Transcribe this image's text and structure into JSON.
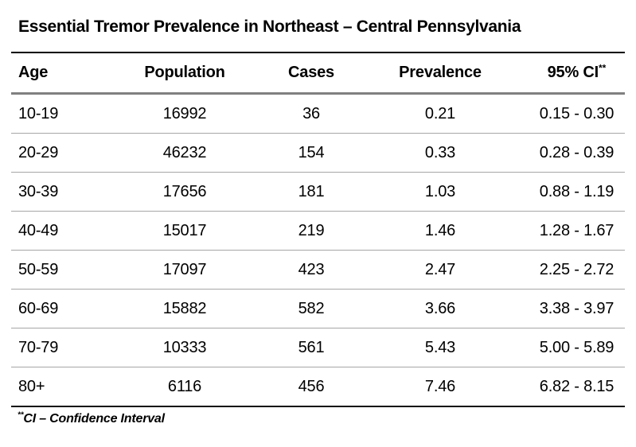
{
  "title": "Essential Tremor Prevalence in Northeast – Central Pennsylvania",
  "table": {
    "columns": [
      "Age",
      "Population",
      "Cases",
      "Prevalence",
      "95% CI"
    ],
    "ci_marker": "**",
    "rows": [
      [
        "10-19",
        "16992",
        "36",
        "0.21",
        "0.15 - 0.30"
      ],
      [
        "20-29",
        "46232",
        "154",
        "0.33",
        "0.28 - 0.39"
      ],
      [
        "30-39",
        "17656",
        "181",
        "1.03",
        "0.88 - 1.19"
      ],
      [
        "40-49",
        "15017",
        "219",
        "1.46",
        "1.28 - 1.67"
      ],
      [
        "50-59",
        "17097",
        "423",
        "2.47",
        "2.25 - 2.72"
      ],
      [
        "60-69",
        "15882",
        "582",
        "3.66",
        "3.38 - 3.97"
      ],
      [
        "70-79",
        "10333",
        "561",
        "5.43",
        "5.00 - 5.89"
      ],
      [
        "80+",
        "6116",
        "456",
        "7.46",
        "6.82 - 8.15"
      ]
    ]
  },
  "footnote": {
    "marker": "**",
    "text": "CI – Confidence Interval"
  },
  "colors": {
    "text": "#000000",
    "rule_heavy": "#000000",
    "rule_header": "#808080",
    "rule_row": "#a6a6a6",
    "background": "#ffffff"
  }
}
